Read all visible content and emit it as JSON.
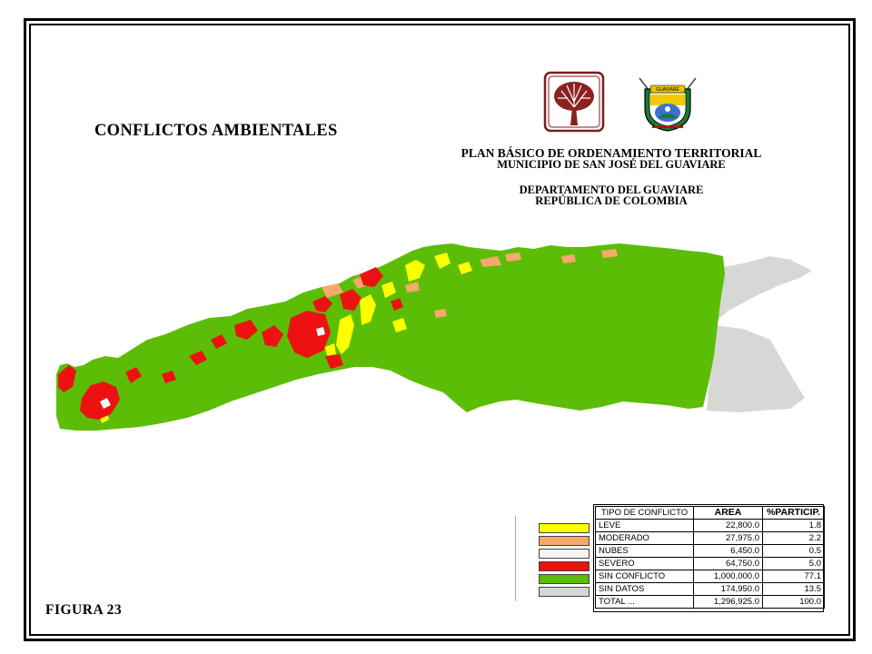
{
  "title": "CONFLICTOS AMBIENTALES",
  "header": {
    "line1": "PLAN BÁSICO DE ORDENAMIENTO TERRITORIAL",
    "line2": "MUNICIPIO DE SAN JOSÉ DEL GUAVIARE",
    "line3": "DEPARTAMENTO DEL GUAVIARE",
    "line4": "REPÚBLICA DE COLOMBIA"
  },
  "figure_label": "FIGURA 23",
  "logos": {
    "left": "tree-emblem-logo",
    "right": "guaviare-coat-of-arms",
    "right_ribbon": "GUAVIARE"
  },
  "colors": {
    "leve": "#ffff00",
    "moderado": "#f7a86b",
    "nubes": "#f5f5f5",
    "severo": "#ee1111",
    "sin_conflicto": "#5cbd06",
    "sin_datos": "#d5d8d5"
  },
  "legend": {
    "headers": [
      "TIPO DE CONFLICTO",
      "AREA",
      "%PARTICIP."
    ],
    "rows": [
      {
        "tipo": "LEVE",
        "area": "22,800.0",
        "pct": "1.8",
        "color": "#ffff00"
      },
      {
        "tipo": "MODERADO",
        "area": "27,975.0",
        "pct": "2.2",
        "color": "#f7a86b"
      },
      {
        "tipo": "NUBES",
        "area": "6,450.0",
        "pct": "0.5",
        "color": "#f5f5f5"
      },
      {
        "tipo": "SEVERO",
        "area": "64,750.0",
        "pct": "5.0",
        "color": "#ee1111"
      },
      {
        "tipo": "SIN CONFLICTO",
        "area": "1,000,000.0",
        "pct": "77.1",
        "color": "#5cbd06"
      },
      {
        "tipo": "SIN DATOS",
        "area": "174,950.0",
        "pct": "13.5",
        "color": "#d5d8d5"
      }
    ],
    "total": {
      "tipo": "TOTAL ...",
      "area": "1,296,925.0",
      "pct": "100.0"
    }
  }
}
